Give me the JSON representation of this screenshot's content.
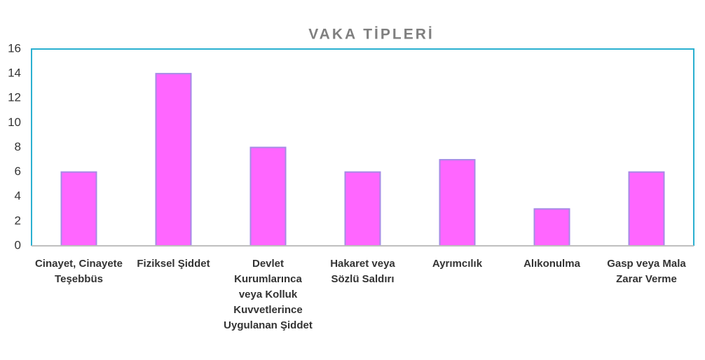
{
  "chart_data": {
    "type": "bar",
    "title": "VAKA TİPLERİ",
    "categories": [
      "Cinayet, Cinayete Teşebbüs",
      "Fiziksel Şiddet",
      "Devlet Kurumlarınca veya Kolluk Kuvvetlerince Uygulanan Şiddet",
      "Hakaret veya Sözlü Saldırı",
      "Ayrımcılık",
      "Alıkonulma",
      "Gasp veya Mala Zarar Verme"
    ],
    "values": [
      6,
      14,
      8,
      6,
      7,
      3,
      6
    ],
    "color": "#ff66ff",
    "ylim": [
      0,
      16
    ],
    "yticks": [
      0,
      2,
      4,
      6,
      8,
      10,
      12,
      14,
      16
    ],
    "grid": false
  }
}
